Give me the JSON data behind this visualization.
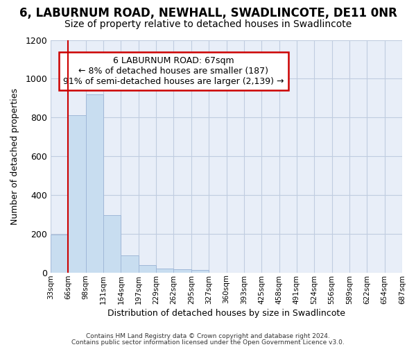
{
  "title1": "6, LABURNUM ROAD, NEWHALL, SWADLINCOTE, DE11 0NR",
  "title2": "Size of property relative to detached houses in Swadlincote",
  "xlabel": "Distribution of detached houses by size in Swadlincote",
  "ylabel": "Number of detached properties",
  "bar_values": [
    195,
    810,
    920,
    295,
    90,
    37,
    20,
    15,
    12,
    0,
    0,
    0,
    0,
    0,
    0,
    0,
    0,
    0,
    0,
    0
  ],
  "bin_labels": [
    "33sqm",
    "66sqm",
    "98sqm",
    "131sqm",
    "164sqm",
    "197sqm",
    "229sqm",
    "262sqm",
    "295sqm",
    "327sqm",
    "360sqm",
    "393sqm",
    "425sqm",
    "458sqm",
    "491sqm",
    "524sqm",
    "556sqm",
    "589sqm",
    "622sqm",
    "654sqm",
    "687sqm"
  ],
  "bar_color": "#c8ddf0",
  "bar_edge_color": "#a0b8d8",
  "vline_x": 1.0,
  "annotation_line1": "6 LABURNUM ROAD: 67sqm",
  "annotation_line2": "← 8% of detached houses are smaller (187)",
  "annotation_line3": "91% of semi-detached houses are larger (2,139) →",
  "annotation_box_color": "#ffffff",
  "annotation_box_edge": "#cc0000",
  "vline_color": "#cc0000",
  "ylim": [
    0,
    1200
  ],
  "yticks": [
    0,
    200,
    400,
    600,
    800,
    1000,
    1200
  ],
  "footer1": "Contains HM Land Registry data © Crown copyright and database right 2024.",
  "footer2": "Contains public sector information licensed under the Open Government Licence v3.0.",
  "background_color": "#ffffff",
  "plot_bg_color": "#e8eef8",
  "grid_color": "#c0cce0",
  "title_fontsize": 12,
  "subtitle_fontsize": 10,
  "bar_width": 1.0
}
